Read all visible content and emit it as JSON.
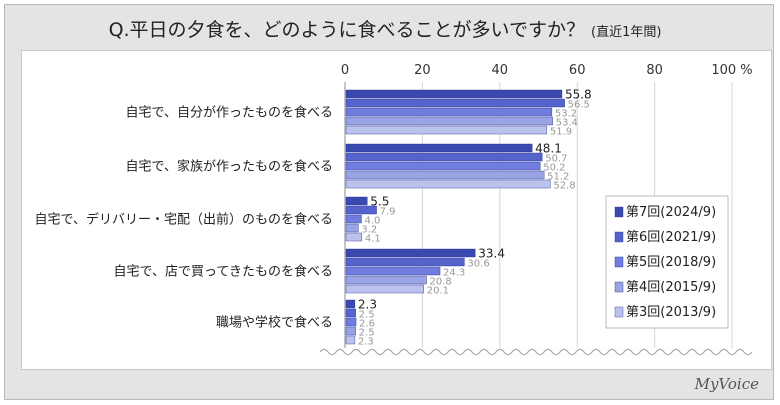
{
  "title": {
    "main": "Q.平日の夕食を、どのように食べることが多いですか？",
    "sub": "(直近1年間)"
  },
  "brand": "MyVoice",
  "chart_data": {
    "type": "bar",
    "orientation": "horizontal",
    "xlim": [
      0,
      100
    ],
    "ticks": [
      "0",
      "20",
      "40",
      "60",
      "80",
      "100 %"
    ],
    "grid": true,
    "legend_position": "right",
    "categories": [
      "自宅で、自分が作ったものを食べる",
      "自宅で、家族が作ったものを食べる",
      "自宅で、デリバリー・宅配（出前）のものを食べる",
      "自宅で、店で買ってきたものを食べる",
      "職場や学校で食べる"
    ],
    "series": [
      {
        "name": "第7回(2024/9)",
        "values": [
          55.8,
          48.1,
          5.5,
          33.4,
          2.3
        ],
        "color": "#3a49b0"
      },
      {
        "name": "第6回(2021/9)",
        "values": [
          56.5,
          50.7,
          7.9,
          30.6,
          2.5
        ],
        "color": "#5564cc"
      },
      {
        "name": "第5回(2018/9)",
        "values": [
          53.2,
          50.2,
          4.0,
          24.3,
          2.6
        ],
        "color": "#6f7ddf"
      },
      {
        "name": "第4回(2015/9)",
        "values": [
          53.4,
          51.2,
          3.2,
          20.8,
          2.5
        ],
        "color": "#9aa3e3"
      },
      {
        "name": "第3回(2013/9)",
        "values": [
          51.9,
          52.8,
          4.1,
          20.1,
          2.3
        ],
        "color": "#bcc2ee"
      }
    ]
  }
}
